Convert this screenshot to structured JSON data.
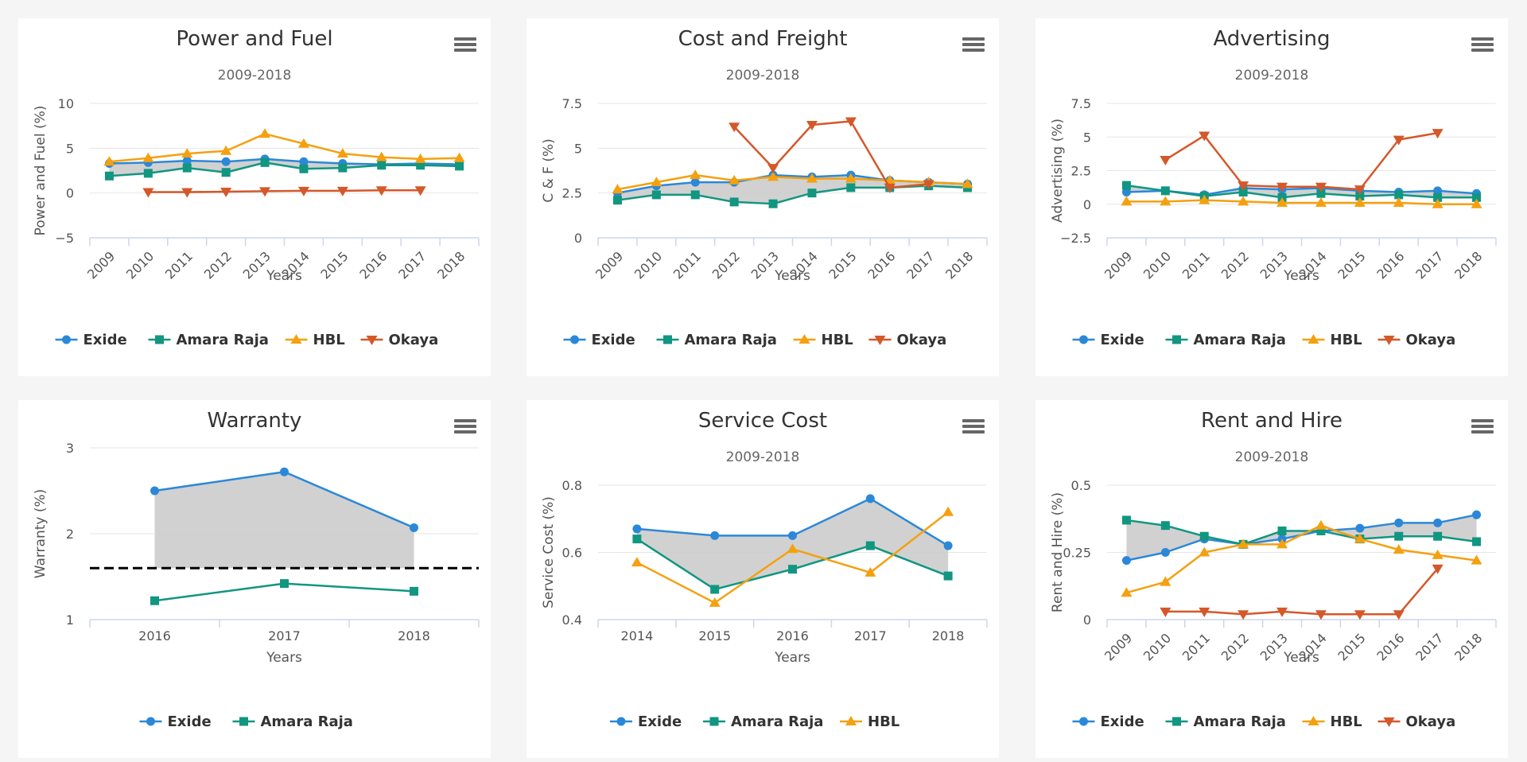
{
  "colors": {
    "exide": "#2b88d8",
    "amara": "#119680",
    "hbl": "#f5a00f",
    "okaya": "#d4582a",
    "band": "#cccccc",
    "grid": "#e6e6e6",
    "axis": "#ccd6eb"
  },
  "icons": {
    "menu": "hamburger-menu-icon",
    "exide": "circle-marker",
    "amara": "square-marker",
    "hbl": "triangle-up-marker",
    "okaya": "triangle-down-marker"
  },
  "chart_data": [
    {
      "id": "power-fuel",
      "type": "line",
      "title": "Power and Fuel",
      "subtitle": "2009-2018",
      "xlabel": "Years",
      "ylabel": "Power and Fuel (%)",
      "categories": [
        "2009",
        "2010",
        "2011",
        "2012",
        "2013",
        "2014",
        "2015",
        "2016",
        "2017",
        "2018"
      ],
      "ylim": [
        -5,
        10
      ],
      "yticks": [
        -5,
        0,
        5,
        10
      ],
      "ytick_labels": [
        "−5",
        "0",
        "5",
        "10"
      ],
      "legend_position": "bottom-center",
      "band_between": [
        "Exide",
        "Amara Raja"
      ],
      "series": [
        {
          "name": "Exide",
          "key": "exide",
          "values": [
            3.3,
            3.4,
            3.6,
            3.5,
            3.8,
            3.5,
            3.3,
            3.2,
            3.3,
            3.2
          ]
        },
        {
          "name": "Amara Raja",
          "key": "amara",
          "values": [
            1.9,
            2.2,
            2.8,
            2.3,
            3.4,
            2.7,
            2.8,
            3.1,
            3.1,
            3.0
          ]
        },
        {
          "name": "HBL",
          "key": "hbl",
          "values": [
            3.5,
            3.9,
            4.4,
            4.7,
            6.6,
            5.5,
            4.4,
            4.0,
            3.8,
            3.9
          ]
        },
        {
          "name": "Okaya",
          "key": "okaya",
          "values": [
            null,
            0.1,
            0.1,
            0.15,
            0.2,
            0.25,
            0.25,
            0.3,
            0.3,
            null
          ]
        }
      ]
    },
    {
      "id": "cost-freight",
      "type": "line",
      "title": "Cost and Freight",
      "subtitle": "2009-2018",
      "xlabel": "Years",
      "ylabel": "C & F (%)",
      "categories": [
        "2009",
        "2010",
        "2011",
        "2012",
        "2013",
        "2014",
        "2015",
        "2016",
        "2017",
        "2018"
      ],
      "ylim": [
        0,
        7.5
      ],
      "yticks": [
        0,
        2.5,
        5,
        7.5
      ],
      "ytick_labels": [
        "0",
        "2.5",
        "5",
        "7.5"
      ],
      "legend_position": "bottom-center",
      "band_between": [
        "Exide",
        "Amara Raja"
      ],
      "series": [
        {
          "name": "Exide",
          "key": "exide",
          "values": [
            2.5,
            2.9,
            3.1,
            3.1,
            3.5,
            3.4,
            3.5,
            3.2,
            3.1,
            3.0
          ]
        },
        {
          "name": "Amara Raja",
          "key": "amara",
          "values": [
            2.1,
            2.4,
            2.4,
            2.0,
            1.9,
            2.5,
            2.8,
            2.8,
            2.9,
            2.8
          ]
        },
        {
          "name": "HBL",
          "key": "hbl",
          "values": [
            2.7,
            3.1,
            3.5,
            3.2,
            3.4,
            3.3,
            3.3,
            3.2,
            3.1,
            3.0
          ]
        },
        {
          "name": "Okaya",
          "key": "okaya",
          "values": [
            null,
            null,
            null,
            6.2,
            3.9,
            6.3,
            6.5,
            2.8,
            3.0,
            null
          ]
        }
      ]
    },
    {
      "id": "advertising",
      "type": "line",
      "title": "Advertising",
      "subtitle": "2009-2018",
      "xlabel": "Years",
      "ylabel": "Advertising (%)",
      "categories": [
        "2009",
        "2010",
        "2011",
        "2012",
        "2013",
        "2014",
        "2015",
        "2016",
        "2017",
        "2018"
      ],
      "ylim": [
        -2.5,
        7.5
      ],
      "yticks": [
        -2.5,
        0,
        2.5,
        5,
        7.5
      ],
      "ytick_labels": [
        "−2.5",
        "0",
        "2.5",
        "5",
        "7.5"
      ],
      "legend_position": "bottom-center",
      "band_between": [
        "Exide",
        "Amara Raja"
      ],
      "series": [
        {
          "name": "Exide",
          "key": "exide",
          "values": [
            0.9,
            1.0,
            0.7,
            1.2,
            1.1,
            1.2,
            1.0,
            0.9,
            1.0,
            0.8
          ]
        },
        {
          "name": "Amara Raja",
          "key": "amara",
          "values": [
            1.4,
            1.0,
            0.6,
            0.9,
            0.5,
            0.8,
            0.6,
            0.7,
            0.5,
            0.5
          ]
        },
        {
          "name": "HBL",
          "key": "hbl",
          "values": [
            0.2,
            0.2,
            0.3,
            0.2,
            0.1,
            0.1,
            0.1,
            0.1,
            0.0,
            0.0
          ]
        },
        {
          "name": "Okaya",
          "key": "okaya",
          "values": [
            null,
            3.3,
            5.1,
            1.4,
            1.3,
            1.3,
            1.1,
            4.8,
            5.3,
            null
          ]
        }
      ]
    },
    {
      "id": "warranty",
      "type": "line",
      "title": "Warranty",
      "subtitle": "",
      "xlabel": "Years",
      "ylabel": "Warranty (%)",
      "categories": [
        "2016",
        "2017",
        "2018"
      ],
      "ylim": [
        1,
        3
      ],
      "yticks": [
        1,
        2,
        3
      ],
      "ytick_labels": [
        "1",
        "2",
        "3"
      ],
      "legend_position": "bottom-center",
      "plotline_dashed": 1.6,
      "band_to_value": 1.6,
      "series": [
        {
          "name": "Exide",
          "key": "exide",
          "values": [
            2.5,
            2.72,
            2.07
          ]
        },
        {
          "name": "Amara Raja",
          "key": "amara",
          "values": [
            1.22,
            1.42,
            1.33
          ]
        }
      ]
    },
    {
      "id": "service-cost",
      "type": "line",
      "title": "Service Cost",
      "subtitle": "2009-2018",
      "xlabel": "Years",
      "ylabel": "Service Cost (%)",
      "categories": [
        "2014",
        "2015",
        "2016",
        "2017",
        "2018"
      ],
      "ylim": [
        0.4,
        0.8
      ],
      "yticks": [
        0.4,
        0.6,
        0.8
      ],
      "ytick_labels": [
        "0.4",
        "0.6",
        "0.8"
      ],
      "legend_position": "bottom-center",
      "band_between": [
        "Exide",
        "Amara Raja"
      ],
      "series": [
        {
          "name": "Exide",
          "key": "exide",
          "values": [
            0.67,
            0.65,
            0.65,
            0.76,
            0.62
          ]
        },
        {
          "name": "Amara Raja",
          "key": "amara",
          "values": [
            0.64,
            0.49,
            0.55,
            0.62,
            0.53
          ]
        },
        {
          "name": "HBL",
          "key": "hbl",
          "values": [
            0.57,
            0.45,
            0.61,
            0.54,
            0.72
          ]
        }
      ]
    },
    {
      "id": "rent-hire",
      "type": "line",
      "title": "Rent and Hire",
      "subtitle": "2009-2018",
      "xlabel": "Years",
      "ylabel": "Rent and Hire (%)",
      "categories": [
        "2009",
        "2010",
        "2011",
        "2012",
        "2013",
        "2014",
        "2015",
        "2016",
        "2017",
        "2018"
      ],
      "ylim": [
        0,
        0.5
      ],
      "yticks": [
        0,
        0.25,
        0.5
      ],
      "ytick_labels": [
        "0",
        "0.25",
        "0.5"
      ],
      "legend_position": "bottom-center",
      "band_between": [
        "Exide",
        "Amara Raja"
      ],
      "series": [
        {
          "name": "Exide",
          "key": "exide",
          "values": [
            0.22,
            0.25,
            0.3,
            0.28,
            0.3,
            0.33,
            0.34,
            0.36,
            0.36,
            0.39
          ]
        },
        {
          "name": "Amara Raja",
          "key": "amara",
          "values": [
            0.37,
            0.35,
            0.31,
            0.28,
            0.33,
            0.33,
            0.3,
            0.31,
            0.31,
            0.29
          ]
        },
        {
          "name": "HBL",
          "key": "hbl",
          "values": [
            0.1,
            0.14,
            0.25,
            0.28,
            0.28,
            0.35,
            0.3,
            0.26,
            0.24,
            0.22
          ]
        },
        {
          "name": "Okaya",
          "key": "okaya",
          "values": [
            null,
            0.03,
            0.03,
            0.02,
            0.03,
            0.02,
            0.02,
            0.02,
            0.19,
            null
          ]
        }
      ]
    }
  ]
}
